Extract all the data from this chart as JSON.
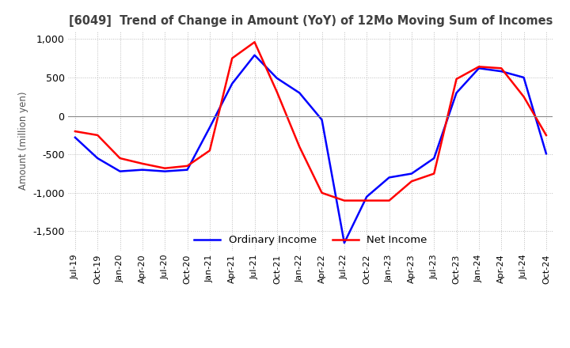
{
  "title": "[6049]  Trend of Change in Amount (YoY) of 12Mo Moving Sum of Incomes",
  "ylabel": "Amount (million yen)",
  "ylim": [
    -1750,
    1100
  ],
  "yticks": [
    -1500,
    -1000,
    -500,
    0,
    500,
    1000
  ],
  "x_labels": [
    "Jul-19",
    "Oct-19",
    "Jan-20",
    "Apr-20",
    "Jul-20",
    "Oct-20",
    "Jan-21",
    "Apr-21",
    "Jul-21",
    "Oct-21",
    "Jan-22",
    "Apr-22",
    "Jul-22",
    "Oct-22",
    "Jan-23",
    "Apr-23",
    "Jul-23",
    "Oct-23",
    "Jan-24",
    "Apr-24",
    "Jul-24",
    "Oct-24"
  ],
  "ordinary_income": [
    -280,
    -550,
    -720,
    -700,
    -720,
    -700,
    -150,
    420,
    790,
    490,
    300,
    -50,
    -1650,
    -1050,
    -800,
    -750,
    -550,
    300,
    620,
    580,
    500,
    -490
  ],
  "net_income": [
    -200,
    -250,
    -550,
    -620,
    -680,
    -650,
    -450,
    750,
    960,
    310,
    -400,
    -1000,
    -1100,
    -1100,
    -1100,
    -850,
    -750,
    480,
    640,
    620,
    250,
    -250
  ],
  "ordinary_color": "#0000ff",
  "net_color": "#ff0000",
  "line_width": 1.8,
  "background_color": "#ffffff",
  "grid_color": "#bbbbbb",
  "legend_ordinary": "Ordinary Income",
  "legend_net": "Net Income"
}
